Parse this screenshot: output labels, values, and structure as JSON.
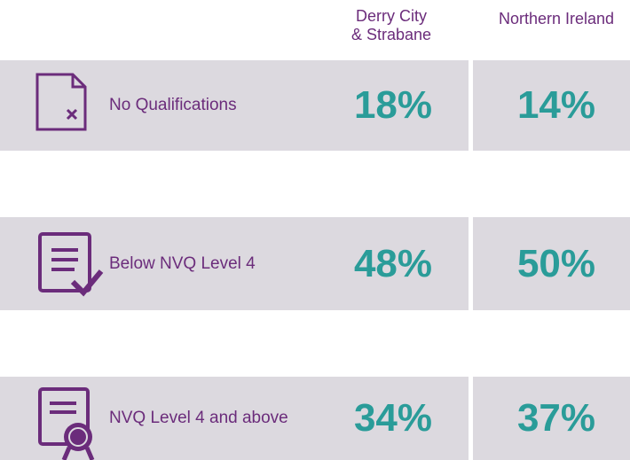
{
  "header": {
    "columns": [
      [
        "Derry City",
        "& Strabane"
      ],
      [
        "Northern Ireland"
      ]
    ]
  },
  "rows": [
    {
      "label": "No Qualifications",
      "values": [
        "18%",
        "14%"
      ]
    },
    {
      "label": "Below NVQ Level 4",
      "values": [
        "48%",
        "50%"
      ]
    },
    {
      "label": "NVQ Level 4 and above",
      "values": [
        "34%",
        "37%"
      ]
    }
  ]
}
